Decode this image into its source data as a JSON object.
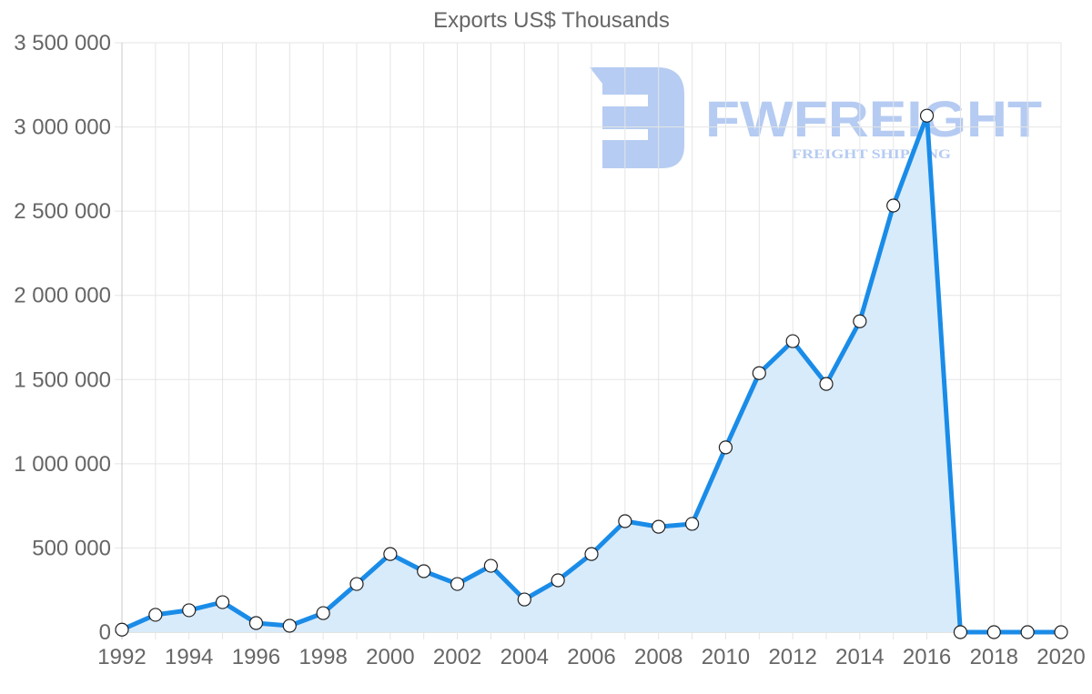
{
  "chart_data": {
    "type": "line",
    "title": "Exports US$ Thousands",
    "xlabel": "",
    "ylabel": "",
    "x": [
      1992,
      1993,
      1994,
      1995,
      1996,
      1997,
      1998,
      1999,
      2000,
      2001,
      2002,
      2003,
      2004,
      2005,
      2006,
      2007,
      2008,
      2009,
      2010,
      2011,
      2012,
      2013,
      2014,
      2015,
      2016,
      2017,
      2018,
      2019,
      2020
    ],
    "series": [
      {
        "name": "Exports US$ Thousands",
        "values": [
          15000,
          103000,
          130000,
          178000,
          54000,
          38000,
          113000,
          286000,
          464000,
          362000,
          286000,
          394000,
          194000,
          308000,
          464000,
          659000,
          626000,
          643000,
          1097000,
          1538000,
          1728000,
          1474000,
          1846000,
          2533000,
          3067000,
          0,
          0,
          0,
          0
        ],
        "color": "#1a8ce8",
        "fill": "#d8ebfb"
      }
    ],
    "ylim": [
      0,
      3500000
    ],
    "y_ticks": [
      0,
      500000,
      1000000,
      1500000,
      2000000,
      2500000,
      3000000,
      3500000
    ],
    "y_tick_labels": [
      "0",
      "500 000",
      "1 000 000",
      "1 500 000",
      "2 000 000",
      "2 500 000",
      "3 000 000",
      "3 500 000"
    ],
    "x_tick_labels": [
      "1992",
      "1994",
      "1996",
      "1998",
      "2000",
      "2002",
      "2004",
      "2006",
      "2008",
      "2010",
      "2012",
      "2014",
      "2016",
      "2018",
      "2020"
    ],
    "grid": true,
    "legend": "none"
  },
  "watermark": {
    "brand": "FWFREIGHT",
    "tagline": "FREIGHT SHIPPING",
    "color": "#a9c3f0"
  }
}
